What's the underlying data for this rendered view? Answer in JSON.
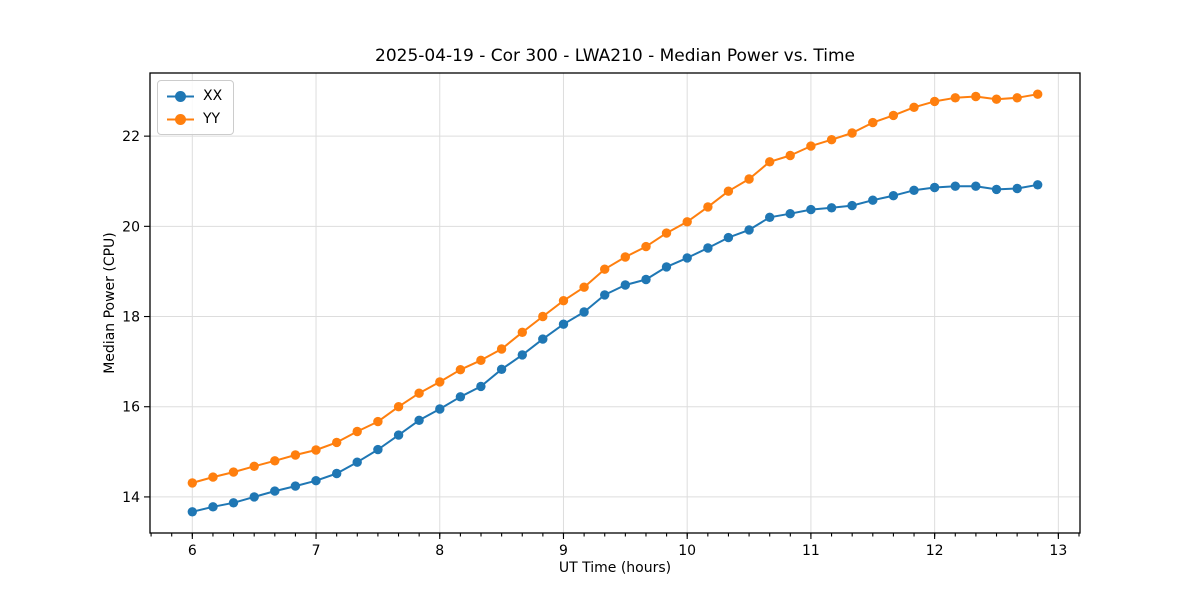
{
  "chart_data": {
    "type": "line",
    "title": "2025-04-19 - Cor 300 - LWA210 - Median Power vs. Time",
    "xlabel": "UT Time (hours)",
    "ylabel": "Median Power (CPU)",
    "xlim": [
      5.658,
      13.175
    ],
    "ylim": [
      13.2,
      23.4
    ],
    "x_ticks": [
      6,
      7,
      8,
      9,
      10,
      11,
      12,
      13
    ],
    "y_ticks": [
      14,
      16,
      18,
      20,
      22
    ],
    "x_minor_step": 0.16667,
    "grid": true,
    "legend_position": "upper-left",
    "background": "#ffffff",
    "grid_color": "#dddddd",
    "spine_color": "#000000",
    "x": [
      6.0,
      6.167,
      6.333,
      6.5,
      6.667,
      6.833,
      7.0,
      7.167,
      7.333,
      7.5,
      7.667,
      7.833,
      8.0,
      8.167,
      8.333,
      8.5,
      8.667,
      8.833,
      9.0,
      9.167,
      9.333,
      9.5,
      9.667,
      9.833,
      10.0,
      10.167,
      10.333,
      10.5,
      10.667,
      10.833,
      11.0,
      11.167,
      11.333,
      11.5,
      11.667,
      11.833,
      12.0,
      12.167,
      12.333,
      12.5,
      12.667,
      12.833
    ],
    "series": [
      {
        "name": "XX",
        "color": "#1f77b4",
        "values": [
          13.67,
          13.78,
          13.87,
          14.0,
          14.13,
          14.24,
          14.36,
          14.52,
          14.77,
          15.05,
          15.37,
          15.7,
          15.95,
          16.22,
          16.45,
          16.83,
          17.15,
          17.5,
          17.83,
          18.1,
          18.48,
          18.7,
          18.82,
          19.1,
          19.3,
          19.52,
          19.75,
          19.92,
          20.2,
          20.28,
          20.37,
          20.41,
          20.46,
          20.58,
          20.68,
          20.8,
          20.86,
          20.89,
          20.89,
          20.82,
          20.84,
          20.92
        ]
      },
      {
        "name": "YY",
        "color": "#ff7f0e",
        "values": [
          14.31,
          14.44,
          14.55,
          14.68,
          14.8,
          14.93,
          15.04,
          15.21,
          15.45,
          15.67,
          16.0,
          16.3,
          16.55,
          16.82,
          17.03,
          17.28,
          17.65,
          18.0,
          18.35,
          18.65,
          19.05,
          19.32,
          19.55,
          19.85,
          20.1,
          20.43,
          20.78,
          21.05,
          21.43,
          21.57,
          21.78,
          21.92,
          22.07,
          22.3,
          22.46,
          22.64,
          22.77,
          22.85,
          22.88,
          22.82,
          22.85,
          22.93
        ]
      }
    ]
  }
}
